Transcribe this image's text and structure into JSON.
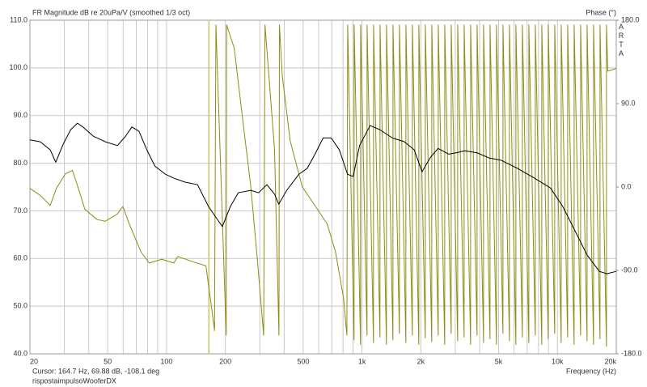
{
  "chart_data": {
    "type": "line",
    "title": "FR Magnitude dB re 20uPa/V (smoothed 1/3 oct)",
    "y2_label": "Phase (°)",
    "brand": "ARTA",
    "x_label": "Frequency (Hz)",
    "cursor": {
      "label": "Cursor: 164.7 Hz, 69.88 dB, -108.1 deg",
      "x": 164.7,
      "color": "#c8c864"
    },
    "file_name": "rispostaimpulsoWooferDX",
    "xscale": "log",
    "grid": true,
    "xlim": [
      20,
      20000
    ],
    "xticks": [
      20,
      50,
      100,
      200,
      500,
      {
        "value": 1000,
        "label": "1k"
      },
      {
        "value": 2000,
        "label": "2k"
      },
      {
        "value": 5000,
        "label": "5k"
      },
      {
        "value": 10000,
        "label": "10k"
      },
      {
        "value": 20000,
        "label": "20k"
      }
    ],
    "x_minor_grid": [
      30,
      40,
      60,
      70,
      80,
      90,
      300,
      400,
      600,
      700,
      800,
      900,
      3000,
      4000,
      6000,
      7000,
      8000,
      9000
    ],
    "ylim": [
      40,
      110
    ],
    "yticks": [
      {
        "value": 40,
        "label": "40.0"
      },
      {
        "value": 50,
        "label": "50.0"
      },
      {
        "value": 60,
        "label": "60.0"
      },
      {
        "value": 70,
        "label": "70.0"
      },
      {
        "value": 80,
        "label": "80.0"
      },
      {
        "value": 90,
        "label": "90.0"
      },
      {
        "value": 100,
        "label": "100.0"
      },
      {
        "value": 110,
        "label": "110.0"
      }
    ],
    "y2lim": [
      -180,
      180
    ],
    "y2ticks": [
      {
        "value": -180,
        "label": "-180.0"
      },
      {
        "value": -90,
        "label": "-90.0"
      },
      {
        "value": 0,
        "label": "0.0"
      },
      {
        "value": 90,
        "label": "90.0"
      },
      {
        "value": 180,
        "label": "180.0"
      }
    ],
    "series": [
      {
        "color": "#000000",
        "x": [
          20,
          22.6,
          25.4,
          27.1,
          29.6,
          32.3,
          35,
          37.6,
          42.1,
          48.6,
          56.1,
          61.8,
          66.5,
          72.3,
          79.3,
          87.2,
          98.5,
          108.3,
          125,
          144,
          164,
          175,
          193,
          212,
          233,
          270,
          296,
          326,
          357,
          375,
          412,
          476,
          524,
          575,
          633,
          696,
          766,
          843,
          901,
          972,
          1101,
          1238,
          1430,
          1650,
          1850,
          2030,
          2230,
          2450,
          2780,
          3050,
          3350,
          3870,
          4470,
          5160,
          6260,
          7600,
          9210,
          10650,
          12300,
          14200,
          16400,
          17900,
          20000
        ],
        "values": [
          84.9,
          84.5,
          82.8,
          80.2,
          84,
          87,
          88.4,
          87.5,
          85.7,
          84.5,
          83.7,
          85.7,
          87.6,
          86.7,
          82.8,
          79.4,
          77.7,
          76.9,
          76,
          75.5,
          70.9,
          69.2,
          66.7,
          70.9,
          73.8,
          74.3,
          73.8,
          75.5,
          73.5,
          71.4,
          74.3,
          77.7,
          78.9,
          81.9,
          85.3,
          85.3,
          82.8,
          77.7,
          77.2,
          83.7,
          87.9,
          87,
          85.3,
          84.5,
          82.8,
          78.2,
          81.1,
          83.1,
          81.9,
          82.2,
          82.6,
          82.2,
          81.1,
          80.6,
          78.9,
          76.9,
          74.8,
          70.9,
          65.8,
          60.7,
          57.3,
          56.8,
          57.3
        ]
      },
      {
        "color": "#8c8c14",
        "axis": "y2",
        "x": [
          20,
          22.6,
          25.4,
          27.3,
          30.3,
          33,
          35.4,
          38.2,
          44.1,
          48.6,
          56.1,
          59.8,
          64.5,
          74,
          81.5,
          94.5,
          109,
          114,
          138,
          159,
          170,
          176,
          178.9,
          202,
          203,
          222,
          243,
          270,
          292,
          314,
          319,
          357,
          376,
          378,
          391,
          429,
          495,
          575,
          664,
          732,
          805,
          837,
          845,
          911,
          912,
          983,
          984,
          1061,
          1062,
          1145,
          1146,
          1236,
          1237,
          1334,
          1335,
          1440,
          1441,
          1554,
          1555,
          1677,
          1678,
          1810,
          1811,
          1953,
          1954,
          2108,
          2109,
          2275,
          2276,
          2455,
          2456,
          2650,
          2651,
          2860,
          2861,
          3087,
          3088,
          3331,
          3332,
          3595,
          3596,
          3880,
          3881,
          4187,
          4188,
          4519,
          4520,
          4877,
          4878,
          5263,
          5264,
          5680,
          5681,
          6130,
          6131,
          6616,
          6617,
          7140,
          7141,
          7705,
          7706,
          8316,
          8317,
          8975,
          8976,
          9685,
          9686,
          10452,
          10453,
          11280,
          11281,
          12174,
          12175,
          13138,
          13139,
          14179,
          14180,
          15302,
          15303,
          16514,
          16515,
          17822,
          17823,
          18100,
          20000
        ],
        "values": [
          -1.5,
          -9,
          -20,
          -1.5,
          14,
          18,
          -1.5,
          -24,
          -35,
          -37,
          -29,
          -21,
          -40,
          -70,
          -82,
          -78,
          -82,
          -75,
          -81,
          -85,
          -130,
          -155,
          175,
          -160,
          175,
          150,
          80,
          0,
          -80,
          -160,
          175,
          40,
          -160,
          175,
          120,
          50,
          0,
          -20,
          -40,
          -70,
          -120,
          -160,
          175,
          -165,
          175,
          -170,
          175,
          -160,
          175,
          -168,
          175,
          -162,
          175,
          -170,
          175,
          -165,
          175,
          -158,
          175,
          -168,
          175,
          -160,
          175,
          -170,
          175,
          -163,
          175,
          -167,
          175,
          -160,
          175,
          -170,
          175,
          -158,
          175,
          -166,
          175,
          -162,
          175,
          -170,
          175,
          -160,
          175,
          -168,
          175,
          -164,
          175,
          -170,
          175,
          -158,
          175,
          -166,
          175,
          -170,
          175,
          -162,
          175,
          -168,
          175,
          -160,
          175,
          -170,
          175,
          -164,
          175,
          -158,
          175,
          -168,
          175,
          -162,
          175,
          -170,
          175,
          -160,
          175,
          -166,
          175,
          -170,
          175,
          -164,
          175,
          -172,
          175,
          125,
          128
        ]
      }
    ]
  }
}
